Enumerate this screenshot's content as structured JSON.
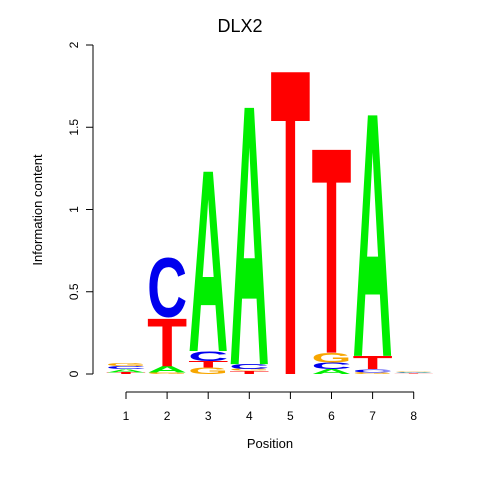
{
  "chart_data": {
    "type": "sequence-logo",
    "title": "DLX2",
    "xlabel": "Position",
    "ylabel": "Information content",
    "ylim": [
      0,
      2
    ],
    "yticks": [
      "0",
      "0.5",
      "1",
      "1.5",
      "2"
    ],
    "positions": [
      "1",
      "2",
      "3",
      "4",
      "5",
      "6",
      "7",
      "8"
    ],
    "colors": {
      "A": "#00ee00",
      "C": "#0000ee",
      "G": "#f7a600",
      "T": "#ff0000"
    },
    "columns": [
      {
        "position": "1",
        "letters": [
          {
            "base": "T",
            "height": 0.01
          },
          {
            "base": "A",
            "height": 0.02
          },
          {
            "base": "C",
            "height": 0.02
          },
          {
            "base": "G",
            "height": 0.02
          }
        ]
      },
      {
        "position": "2",
        "letters": [
          {
            "base": "G",
            "height": 0.01
          },
          {
            "base": "A",
            "height": 0.04
          },
          {
            "base": "T",
            "height": 0.3
          },
          {
            "base": "C",
            "height": 0.37
          }
        ]
      },
      {
        "position": "3",
        "letters": [
          {
            "base": "G",
            "height": 0.04
          },
          {
            "base": "T",
            "height": 0.04
          },
          {
            "base": "C",
            "height": 0.06
          },
          {
            "base": "A",
            "height": 1.14
          }
        ]
      },
      {
        "position": "4",
        "letters": [
          {
            "base": "T",
            "height": 0.02
          },
          {
            "base": "G",
            "height": 0.01
          },
          {
            "base": "C",
            "height": 0.03
          },
          {
            "base": "A",
            "height": 1.63
          }
        ]
      },
      {
        "position": "5",
        "letters": [
          {
            "base": "T",
            "height": 1.92
          }
        ]
      },
      {
        "position": "6",
        "letters": [
          {
            "base": "A",
            "height": 0.03
          },
          {
            "base": "C",
            "height": 0.04
          },
          {
            "base": "G",
            "height": 0.06
          },
          {
            "base": "T",
            "height": 1.29
          }
        ]
      },
      {
        "position": "7",
        "letters": [
          {
            "base": "G",
            "height": 0.01
          },
          {
            "base": "C",
            "height": 0.02
          },
          {
            "base": "T",
            "height": 0.08
          },
          {
            "base": "A",
            "height": 1.53
          }
        ]
      },
      {
        "position": "8",
        "letters": [
          {
            "base": "T",
            "height": 0.005
          },
          {
            "base": "A",
            "height": 0.005
          },
          {
            "base": "C",
            "height": 0.005
          },
          {
            "base": "G",
            "height": 0.005
          }
        ]
      }
    ]
  }
}
